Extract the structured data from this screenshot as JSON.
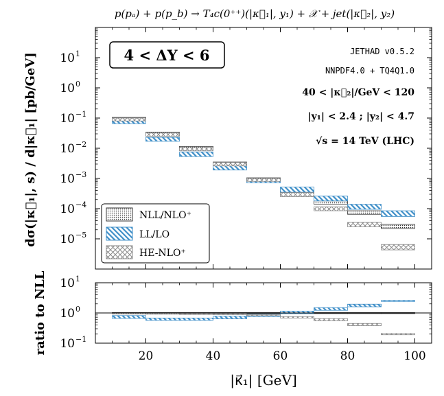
{
  "chart_data": {
    "type": "area",
    "title": "p(pₐ) + p(p_b) → T₄c(0⁺⁺)(|κ⃗₁|, y₁) + 𝒳 + jet(|κ⃗₂|, y₂)",
    "xlabel": "|κ⃗₁| [GeV]",
    "xlim": [
      5,
      105
    ],
    "x_ticks": [
      "20",
      "40",
      "60",
      "80",
      "100"
    ],
    "bin_edges": [
      10,
      20,
      30,
      40,
      50,
      60,
      70,
      80,
      90,
      100
    ],
    "badge": "4 < ΔY < 6",
    "info_lines": [
      "JETHAD v0.5.2",
      "NNPDF4.0 + TQ4Q1.0",
      "40 < |κ⃗₂|/GeV < 120",
      "|y₁| < 2.4 ;   |y₂| < 4.7",
      "√s = 14 TeV (LHC)"
    ],
    "legend_position": "lower-left",
    "main_panel": {
      "ylabel": "dσ(|κ⃗₁|, s) / d|κ⃗₁| [pb/GeV]",
      "yscale": "log",
      "ylim": [
        1e-06,
        100.0
      ],
      "y_ticks": [
        {
          "mant": "10",
          "exp": "1"
        },
        {
          "mant": "10",
          "exp": "0"
        },
        {
          "mant": "10",
          "exp": "−1"
        },
        {
          "mant": "10",
          "exp": "−2"
        },
        {
          "mant": "10",
          "exp": "−3"
        },
        {
          "mant": "10",
          "exp": "−4"
        },
        {
          "mant": "10",
          "exp": "−5"
        }
      ],
      "series": [
        {
          "name": "NLL/NLO⁺",
          "style": "dots",
          "color": "#333333",
          "lower": [
            0.085,
            0.026,
            0.0088,
            0.0028,
            0.00085,
            0.00035,
            0.00014,
            6.5e-05,
            2.2e-05
          ],
          "upper": [
            0.105,
            0.034,
            0.0115,
            0.0035,
            0.00105,
            0.00045,
            0.00018,
            8.5e-05,
            3e-05
          ]
        },
        {
          "name": "LL/LO",
          "style": "hatch-blue",
          "color": "#3f8fc8",
          "lower": [
            0.065,
            0.017,
            0.0053,
            0.0019,
            0.00072,
            0.00035,
            0.00018,
            9.5e-05,
            5.5e-05
          ],
          "upper": [
            0.085,
            0.023,
            0.0075,
            0.0027,
            0.00098,
            0.00052,
            0.00026,
            0.00014,
            8.5e-05
          ]
        },
        {
          "name": "HE-NLO⁺",
          "style": "cross-gray",
          "color": "#8a8a8a",
          "lower": [
            0.08,
            0.025,
            0.0082,
            0.0026,
            0.0008,
            0.00025,
            8.5e-05,
            2.5e-05,
            4.3e-06
          ],
          "upper": [
            0.1,
            0.032,
            0.0105,
            0.0034,
            0.001,
            0.00034,
            0.000115,
            3.5e-05,
            6.5e-06
          ]
        }
      ]
    },
    "ratio_panel": {
      "ylabel": "ratio to NLL",
      "yscale": "log",
      "ylim": [
        0.1,
        10
      ],
      "y_ticks": [
        {
          "mant": "10",
          "exp": "1"
        },
        {
          "mant": "10",
          "exp": "0"
        },
        {
          "mant": "10",
          "exp": "−1"
        }
      ],
      "reference_line": 1,
      "series": [
        {
          "name": "NLL/NLO⁺",
          "style": "dots",
          "color": "#333333",
          "lower": [
            0.97,
            0.97,
            0.97,
            0.97,
            0.97,
            0.97,
            0.97,
            0.97,
            0.97
          ],
          "upper": [
            1.03,
            1.03,
            1.03,
            1.03,
            1.03,
            1.03,
            1.03,
            1.03,
            1.03
          ]
        },
        {
          "name": "LL/LO",
          "style": "hatch-blue",
          "color": "#3f8fc8",
          "lower": [
            0.66,
            0.57,
            0.57,
            0.64,
            0.76,
            0.95,
            1.22,
            1.6,
            2.45
          ],
          "upper": [
            0.82,
            0.68,
            0.68,
            0.78,
            0.9,
            1.15,
            1.5,
            1.95,
            2.6
          ]
        },
        {
          "name": "HE-NLO⁺",
          "style": "cross-gray",
          "color": "#8a8a8a",
          "lower": [
            0.93,
            0.92,
            0.9,
            0.88,
            0.82,
            0.68,
            0.55,
            0.38,
            0.19
          ],
          "upper": [
            0.99,
            0.98,
            0.96,
            0.95,
            0.88,
            0.76,
            0.65,
            0.45,
            0.21
          ]
        }
      ]
    }
  }
}
